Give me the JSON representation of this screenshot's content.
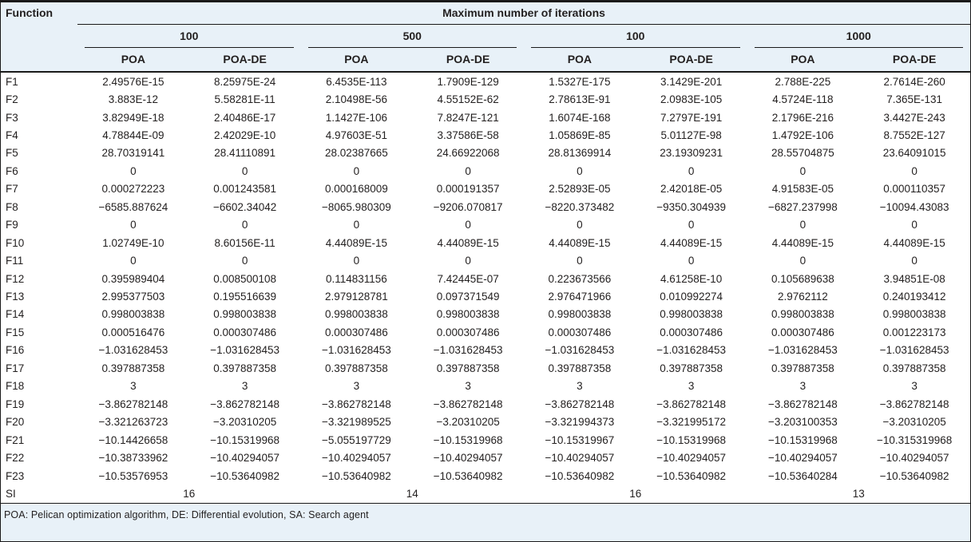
{
  "table": {
    "header": {
      "function_label": "Function",
      "iterations_label": "Maximum number of iterations",
      "groups": [
        "100",
        "500",
        "100",
        "1000"
      ],
      "algorithms": [
        "POA",
        "POA-DE"
      ]
    },
    "rows": [
      {
        "label": "F1",
        "values": [
          "2.49576E-15",
          "8.25975E-24",
          "6.4535E-113",
          "1.7909E-129",
          "1.5327E-175",
          "3.1429E-201",
          "2.788E-225",
          "2.7614E-260"
        ]
      },
      {
        "label": "F2",
        "values": [
          "3.883E-12",
          "5.58281E-11",
          "2.10498E-56",
          "4.55152E-62",
          "2.78613E-91",
          "2.0983E-105",
          "4.5724E-118",
          "7.365E-131"
        ]
      },
      {
        "label": "F3",
        "values": [
          "3.82949E-18",
          "2.40486E-17",
          "1.1427E-106",
          "7.8247E-121",
          "1.6074E-168",
          "7.2797E-191",
          "2.1796E-216",
          "3.4427E-243"
        ]
      },
      {
        "label": "F4",
        "values": [
          "4.78844E-09",
          "2.42029E-10",
          "4.97603E-51",
          "3.37586E-58",
          "1.05869E-85",
          "5.01127E-98",
          "1.4792E-106",
          "8.7552E-127"
        ]
      },
      {
        "label": "F5",
        "values": [
          "28.70319141",
          "28.41110891",
          "28.02387665",
          "24.66922068",
          "28.81369914",
          "23.19309231",
          "28.55704875",
          "23.64091015"
        ]
      },
      {
        "label": "F6",
        "values": [
          "0",
          "0",
          "0",
          "0",
          "0",
          "0",
          "0",
          "0"
        ]
      },
      {
        "label": "F7",
        "values": [
          "0.000272223",
          "0.001243581",
          "0.000168009",
          "0.000191357",
          "2.52893E-05",
          "2.42018E-05",
          "4.91583E-05",
          "0.000110357"
        ]
      },
      {
        "label": "F8",
        "values": [
          "−6585.887624",
          "−6602.34042",
          "−8065.980309",
          "−9206.070817",
          "−8220.373482",
          "−9350.304939",
          "−6827.237998",
          "−10094.43083"
        ]
      },
      {
        "label": "F9",
        "values": [
          "0",
          "0",
          "0",
          "0",
          "0",
          "0",
          "0",
          "0"
        ]
      },
      {
        "label": "F10",
        "values": [
          "1.02749E-10",
          "8.60156E-11",
          "4.44089E-15",
          "4.44089E-15",
          "4.44089E-15",
          "4.44089E-15",
          "4.44089E-15",
          "4.44089E-15"
        ]
      },
      {
        "label": "F11",
        "values": [
          "0",
          "0",
          "0",
          "0",
          "0",
          "0",
          "0",
          "0"
        ]
      },
      {
        "label": "F12",
        "values": [
          "0.395989404",
          "0.008500108",
          "0.114831156",
          "7.42445E-07",
          "0.223673566",
          "4.61258E-10",
          "0.105689638",
          "3.94851E-08"
        ]
      },
      {
        "label": "F13",
        "values": [
          "2.995377503",
          "0.195516639",
          "2.979128781",
          "0.097371549",
          "2.976471966",
          "0.010992274",
          "2.9762112",
          "0.240193412"
        ]
      },
      {
        "label": "F14",
        "values": [
          "0.998003838",
          "0.998003838",
          "0.998003838",
          "0.998003838",
          "0.998003838",
          "0.998003838",
          "0.998003838",
          "0.998003838"
        ]
      },
      {
        "label": "F15",
        "values": [
          "0.000516476",
          "0.000307486",
          "0.000307486",
          "0.000307486",
          "0.000307486",
          "0.000307486",
          "0.000307486",
          "0.001223173"
        ]
      },
      {
        "label": "F16",
        "values": [
          "−1.031628453",
          "−1.031628453",
          "−1.031628453",
          "−1.031628453",
          "−1.031628453",
          "−1.031628453",
          "−1.031628453",
          "−1.031628453"
        ]
      },
      {
        "label": "F17",
        "values": [
          "0.397887358",
          "0.397887358",
          "0.397887358",
          "0.397887358",
          "0.397887358",
          "0.397887358",
          "0.397887358",
          "0.397887358"
        ]
      },
      {
        "label": "F18",
        "values": [
          "3",
          "3",
          "3",
          "3",
          "3",
          "3",
          "3",
          "3"
        ]
      },
      {
        "label": "F19",
        "values": [
          "−3.862782148",
          "−3.862782148",
          "−3.862782148",
          "−3.862782148",
          "−3.862782148",
          "−3.862782148",
          "−3.862782148",
          "−3.862782148"
        ]
      },
      {
        "label": "F20",
        "values": [
          "−3.321263723",
          "−3.20310205",
          "−3.321989525",
          "−3.20310205",
          "−3.321994373",
          "−3.321995172",
          "−3.203100353",
          "−3.20310205"
        ]
      },
      {
        "label": "F21",
        "values": [
          "−10.14426658",
          "−10.15319968",
          "−5.055197729",
          "−10.15319968",
          "−10.15319967",
          "−10.15319968",
          "−10.15319968",
          "−10.315319968"
        ]
      },
      {
        "label": "F22",
        "values": [
          "−10.38733962",
          "−10.40294057",
          "−10.40294057",
          "−10.40294057",
          "−10.40294057",
          "−10.40294057",
          "−10.40294057",
          "−10.40294057"
        ]
      },
      {
        "label": "F23",
        "values": [
          "−10.53576953",
          "−10.53640982",
          "−10.53640982",
          "−10.53640982",
          "−10.53640982",
          "−10.53640982",
          "−10.53640284",
          "−10.53640982"
        ]
      }
    ],
    "si_row": {
      "label": "SI",
      "values": [
        "16",
        "14",
        "16",
        "13"
      ]
    },
    "footnote": "POA: Pelican optimization algorithm, DE: Differential evolution, SA: Search agent"
  },
  "colors": {
    "header_bg": "#e8f1f8",
    "body_bg": "#ffffff",
    "border": "#1a1a1a",
    "text": "#221f1f"
  }
}
